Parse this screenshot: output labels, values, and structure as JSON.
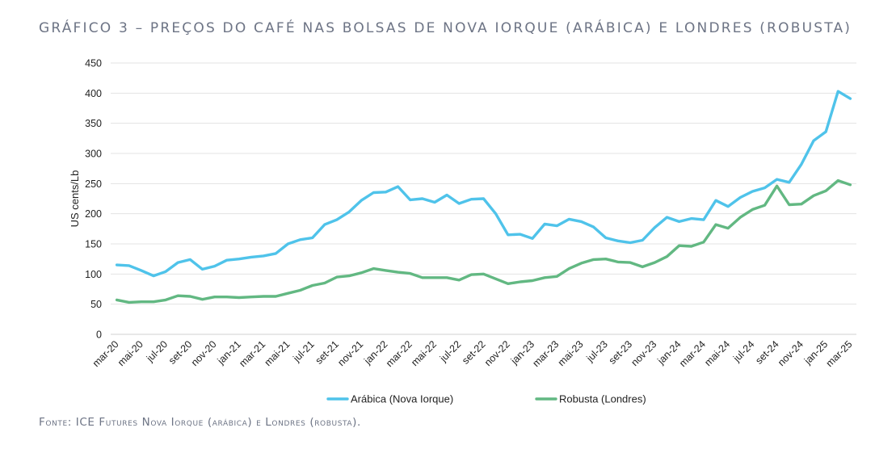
{
  "title": "GRÁFICO 3 – PREÇOS DO CAFÉ NAS BOLSAS DE NOVA IORQUE (ARÁBICA) E LONDRES (ROBUSTA)",
  "source": "Fonte: ICE Futures Nova Iorque (arábica) e Londres (robusta).",
  "chart_data": {
    "type": "line",
    "ylabel": "US cents/Lb",
    "ylim": [
      0,
      450
    ],
    "yticks": [
      0,
      50,
      100,
      150,
      200,
      250,
      300,
      350,
      400,
      450
    ],
    "grid": "horizontal",
    "legend_position": "bottom",
    "xtick_labels": [
      "mar-20",
      "mai-20",
      "jul-20",
      "set-20",
      "nov-20",
      "jan-21",
      "mar-21",
      "mai-21",
      "jul-21",
      "set-21",
      "nov-21",
      "jan-22",
      "mar-22",
      "mai-22",
      "jul-22",
      "set-22",
      "nov-22",
      "jan-23",
      "mar-23",
      "mai-23",
      "jul-23",
      "set-23",
      "nov-23",
      "jan-24",
      "mar-24",
      "mai-24",
      "jul-24",
      "set-24",
      "nov-24",
      "jan-25",
      "mar-25"
    ],
    "x": [
      "mar-20",
      "abr-20",
      "mai-20",
      "jun-20",
      "jul-20",
      "ago-20",
      "set-20",
      "out-20",
      "nov-20",
      "dez-20",
      "jan-21",
      "fev-21",
      "mar-21",
      "abr-21",
      "mai-21",
      "jun-21",
      "jul-21",
      "ago-21",
      "set-21",
      "out-21",
      "nov-21",
      "dez-21",
      "jan-22",
      "fev-22",
      "mar-22",
      "abr-22",
      "mai-22",
      "jun-22",
      "jul-22",
      "ago-22",
      "set-22",
      "out-22",
      "nov-22",
      "dez-22",
      "jan-23",
      "fev-23",
      "mar-23",
      "abr-23",
      "mai-23",
      "jun-23",
      "jul-23",
      "ago-23",
      "set-23",
      "out-23",
      "nov-23",
      "dez-23",
      "jan-24",
      "fev-24",
      "mar-24",
      "abr-24",
      "mai-24",
      "jun-24",
      "jul-24",
      "ago-24",
      "set-24",
      "out-24",
      "nov-24",
      "dez-24",
      "jan-25",
      "fev-25",
      "mar-25"
    ],
    "series": [
      {
        "name": "Arábica (Nova Iorque)",
        "color": "#4fc3ea",
        "values": [
          115,
          114,
          106,
          97,
          104,
          119,
          124,
          108,
          113,
          123,
          125,
          128,
          130,
          134,
          150,
          157,
          160,
          182,
          190,
          203,
          222,
          235,
          236,
          245,
          223,
          225,
          219,
          231,
          217,
          224,
          225,
          200,
          165,
          166,
          159,
          183,
          180,
          191,
          187,
          178,
          160,
          155,
          152,
          156,
          177,
          194,
          187,
          192,
          190,
          222,
          212,
          227,
          237,
          243,
          257,
          252,
          282,
          321,
          336,
          403,
          391
        ]
      },
      {
        "name": "Robusta (Londres)",
        "color": "#62b882",
        "values": [
          57,
          53,
          54,
          54,
          57,
          64,
          63,
          58,
          62,
          62,
          61,
          62,
          63,
          63,
          68,
          73,
          81,
          85,
          95,
          97,
          102,
          109,
          106,
          103,
          101,
          94,
          94,
          94,
          90,
          99,
          100,
          92,
          84,
          87,
          89,
          94,
          96,
          109,
          118,
          124,
          125,
          120,
          119,
          112,
          119,
          129,
          147,
          146,
          153,
          182,
          176,
          194,
          207,
          214,
          246,
          215,
          216,
          230,
          238,
          255,
          248
        ]
      }
    ]
  }
}
